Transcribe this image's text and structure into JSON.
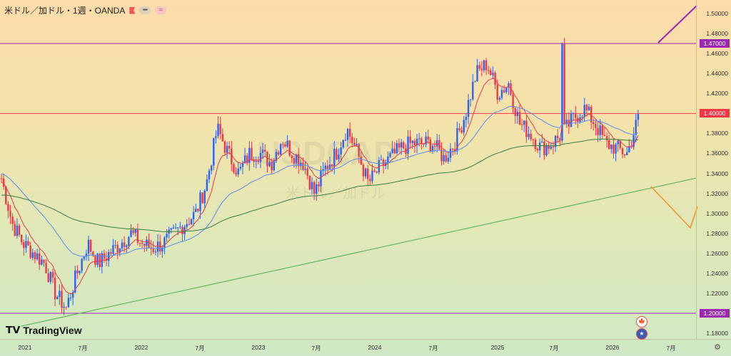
{
  "header": {
    "title": "米ドル／加ドル・1週・OANDA",
    "pill1": "━",
    "pill2": "="
  },
  "watermark": {
    "symbol": "USDCAD",
    "name": "米ドル／加ドル"
  },
  "logo": "TradingView",
  "price_axis": [
    "1.50000",
    "1.48000",
    "1.46000",
    "1.44000",
    "1.42000",
    "1.38000",
    "1.36000",
    "1.34000",
    "1.32000",
    "1.30000",
    "1.28000",
    "1.26000",
    "1.24000",
    "1.22000",
    "1.18000"
  ],
  "price_tags": [
    {
      "label": "1.47000",
      "color": "#9c27b0"
    },
    {
      "label": "1.40000",
      "color": "#f23645"
    },
    {
      "label": "1.20000",
      "color": "#9c27b0"
    }
  ],
  "time_axis": [
    "2021",
    "7月",
    "2022",
    "7月",
    "2023",
    "7月",
    "2024",
    "7月",
    "2025",
    "7月",
    "2026",
    "7月"
  ],
  "colors": {
    "up": "#2962ff",
    "down": "#f23645",
    "ma_short": "#e53950",
    "ma_mid": "#5b8def",
    "ma_long": "#3a7d44",
    "trend": "#4caf50",
    "orange": "#f0922a",
    "purple": "#9c27b0"
  },
  "chart_data": {
    "type": "candlestick",
    "waypoints_price": [
      1.335,
      1.29,
      1.27,
      1.26,
      1.25,
      1.22,
      1.205,
      1.24,
      1.27,
      1.25,
      1.26,
      1.27,
      1.28,
      1.27,
      1.265,
      1.27,
      1.28,
      1.29,
      1.3,
      1.33,
      1.385,
      1.36,
      1.34,
      1.36,
      1.36,
      1.35,
      1.375,
      1.36,
      1.35,
      1.32,
      1.345,
      1.36,
      1.385,
      1.36,
      1.33,
      1.345,
      1.355,
      1.365,
      1.37,
      1.37,
      1.37,
      1.355,
      1.37,
      1.4,
      1.44,
      1.45,
      1.42,
      1.43,
      1.39,
      1.38,
      1.365,
      1.37,
      1.38,
      1.395,
      1.405,
      1.39,
      1.37,
      1.365,
      1.36,
      1.395
    ],
    "levels": [
      1.47,
      1.4,
      1.2
    ]
  }
}
